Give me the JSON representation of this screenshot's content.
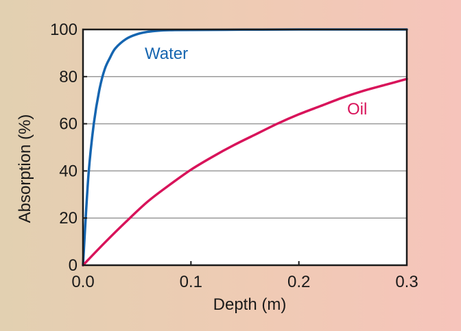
{
  "chart_data": {
    "type": "line",
    "xlabel": "Depth (m)",
    "ylabel": "Absorption (%)",
    "xlim": [
      0.0,
      0.3
    ],
    "ylim": [
      0,
      100
    ],
    "x_ticks": [
      "0.0",
      "0.1",
      "0.2",
      "0.3"
    ],
    "y_ticks": [
      "0",
      "20",
      "40",
      "60",
      "80",
      "100"
    ],
    "grid": "horizontal",
    "series": [
      {
        "name": "Water",
        "color": "#1565b0",
        "x": [
          0.0,
          0.005,
          0.01,
          0.015,
          0.02,
          0.025,
          0.03,
          0.04,
          0.05,
          0.06,
          0.07,
          0.08,
          0.1,
          0.15,
          0.2,
          0.25,
          0.3
        ],
        "y": [
          0,
          38,
          60,
          74,
          83,
          88,
          92,
          96,
          98,
          99,
          99.5,
          99.7,
          99.8,
          99.9,
          100,
          100,
          100
        ]
      },
      {
        "name": "Oil",
        "color": "#d8135a",
        "x": [
          0.0,
          0.02,
          0.04,
          0.06,
          0.08,
          0.1,
          0.12,
          0.14,
          0.16,
          0.18,
          0.2,
          0.22,
          0.24,
          0.26,
          0.28,
          0.3
        ],
        "y": [
          0,
          9.5,
          18.5,
          27,
          34,
          40.5,
          46,
          51,
          55.5,
          60,
          64,
          67.5,
          71,
          74,
          76.5,
          79
        ]
      }
    ]
  }
}
